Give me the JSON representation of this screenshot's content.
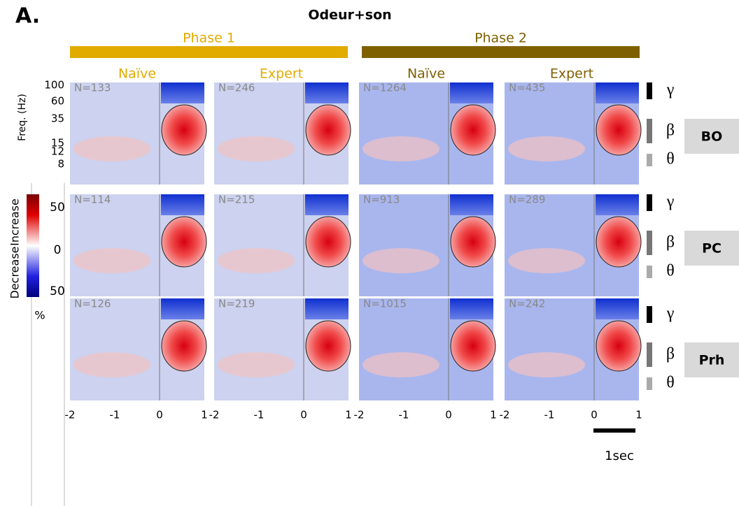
{
  "header": {
    "label": "A.",
    "title": "Odeur+son"
  },
  "phases": [
    {
      "title": "Phase 1",
      "color": "#e1ab00",
      "columns": [
        "Naïve",
        "Expert"
      ]
    },
    {
      "title": "Phase 2",
      "color": "#7f6000",
      "columns": [
        "Naïve",
        "Expert"
      ]
    }
  ],
  "y_axis": {
    "label": "Freq. (Hz)",
    "ticks": [
      "100",
      "60",
      "35",
      "15",
      "12",
      "8"
    ]
  },
  "x_axis": {
    "ticks": [
      "-2",
      "-1",
      "0",
      "1"
    ]
  },
  "colorbar": {
    "top": "50",
    "middle": "0",
    "bottom": "50",
    "increase": "Increase",
    "decrease": "Decrease",
    "unit": "%"
  },
  "rows": [
    {
      "region": "BO",
      "bands": [
        "γ",
        "β",
        "θ"
      ],
      "counts": [
        "N=133",
        "N=246",
        "N=1264",
        "N=435"
      ]
    },
    {
      "region": "PC",
      "bands": [
        "γ",
        "β",
        "θ"
      ],
      "counts": [
        "N=114",
        "N=215",
        "N=913",
        "N=289"
      ]
    },
    {
      "region": "Prh",
      "bands": [
        "γ",
        "β",
        "θ"
      ],
      "counts": [
        "N=126",
        "N=219",
        "N=1015",
        "N=242"
      ]
    }
  ],
  "scale_bar": "1sec"
}
